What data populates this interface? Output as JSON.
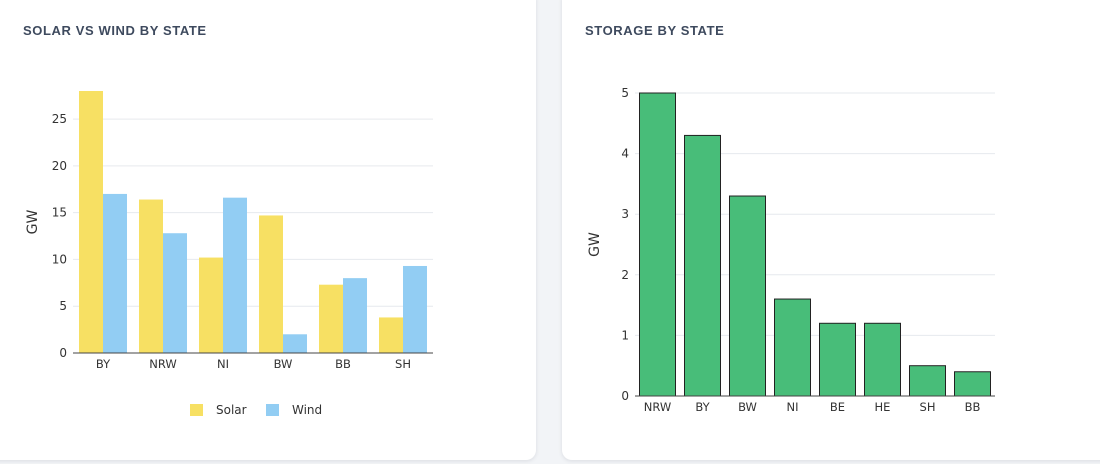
{
  "cards": [
    {
      "title": "SOLAR VS WIND BY STATE"
    },
    {
      "title": "STORAGE BY STATE"
    }
  ],
  "chart_data": [
    {
      "type": "bar",
      "title": "SOLAR VS WIND BY STATE",
      "xlabel": "",
      "ylabel": "GW",
      "categories": [
        "BY",
        "NRW",
        "NI",
        "BW",
        "BB",
        "SH"
      ],
      "series": [
        {
          "name": "Solar",
          "color": "#f7e063",
          "values": [
            28.0,
            16.4,
            10.2,
            14.7,
            7.3,
            3.8
          ]
        },
        {
          "name": "Wind",
          "color": "#92cdf3",
          "values": [
            17.0,
            12.8,
            16.6,
            2.0,
            8.0,
            9.3
          ]
        }
      ],
      "ylim": [
        0,
        28
      ],
      "yticks": [
        0,
        5,
        10,
        15,
        20,
        25
      ],
      "grid": true,
      "legend": "bottom"
    },
    {
      "type": "bar",
      "title": "STORAGE BY STATE",
      "xlabel": "",
      "ylabel": "GW",
      "categories": [
        "NRW",
        "BY",
        "BW",
        "NI",
        "BE",
        "HE",
        "SH",
        "BB"
      ],
      "series": [
        {
          "name": "Storage",
          "color": "#48bd79",
          "values": [
            5.0,
            4.3,
            3.3,
            1.6,
            1.2,
            1.2,
            0.5,
            0.4
          ]
        }
      ],
      "ylim": [
        0,
        5
      ],
      "yticks": [
        0,
        1,
        2,
        3,
        4,
        5
      ],
      "grid": true,
      "legend": "none"
    }
  ]
}
